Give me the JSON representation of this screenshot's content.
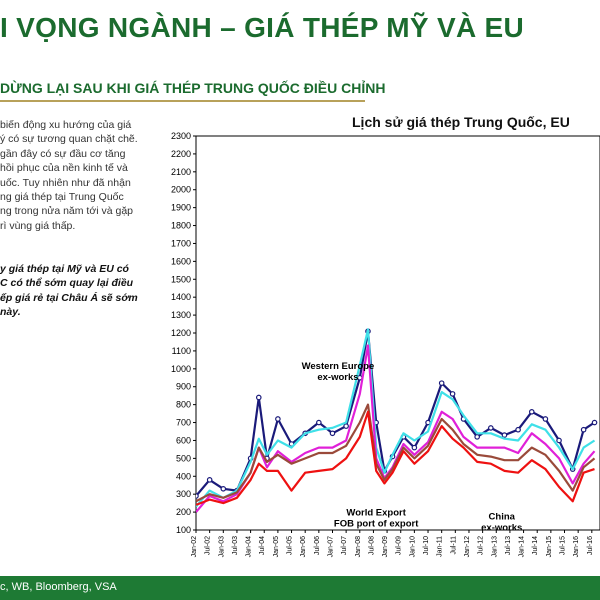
{
  "header": {
    "title": "I VỌNG NGÀNH – GIÁ THÉP MỸ VÀ EU",
    "subtitle": "DỪNG LẠI SAU KHI GIÁ THÉP TRUNG QUỐC ĐIỀU CHỈNH"
  },
  "body": {
    "lines": [
      "biến động xu hướng của giá",
      "ý có sự tương quan chặt chẽ.",
      "gần đây có sự đầu cơ tăng",
      "hồi phục của nền kinh tế và",
      "uốc. Tuy nhiên như đã nhận",
      "ng giá thép tại Trung Quốc",
      "ng trong nửa năm tới và gặp",
      "rì vùng giá thấp."
    ],
    "bold_lines": [
      "y giá thép tại Mỹ và EU có",
      "C có thể sớm quay lại điều",
      "ếp giá rẻ tại Châu Á sẽ sớm",
      "này."
    ]
  },
  "footer": {
    "source": "c, WB, Bloomberg, VSA"
  },
  "colors": {
    "brand": "#1b6b2e",
    "footer": "#1e7a34",
    "rule": "#b8a15a",
    "navy": "#1a1a7a",
    "cyan": "#3fe0e8",
    "magenta": "#e020d8",
    "brown": "#9a4a3a",
    "red": "#ee1111"
  },
  "chart_data": {
    "type": "line",
    "title": "Lịch sử giá thép Trung Quốc, EU",
    "ylim": [
      100,
      2300
    ],
    "yticks": [
      100,
      200,
      300,
      400,
      500,
      600,
      700,
      800,
      900,
      1000,
      1100,
      1200,
      1300,
      1400,
      1500,
      1600,
      1700,
      1800,
      1900,
      2000,
      2100,
      2200,
      2300
    ],
    "xlabels": [
      "Jan-02",
      "Jul-02",
      "Jan-03",
      "Jul-03",
      "Jan-04",
      "Jul-04",
      "Jan-05",
      "Jul-05",
      "Jan-06",
      "Jul-06",
      "Jan-07",
      "Jul-07",
      "Jan-08",
      "Jul-08",
      "Jan-09",
      "Jul-09",
      "Jan-10",
      "Jul-10",
      "Jan-11",
      "Jul-11",
      "Jan-12",
      "Jul-12",
      "Jan-13",
      "Jul-13",
      "Jan-14",
      "Jul-14",
      "Jan-15",
      "Jul-15",
      "Jan-16",
      "Jul-16"
    ],
    "x": [
      2002,
      2002.5,
      2003,
      2003.5,
      2004,
      2004.3,
      2004.6,
      2005,
      2005.5,
      2006,
      2006.5,
      2007,
      2007.5,
      2008,
      2008.3,
      2008.6,
      2008.9,
      2009.2,
      2009.6,
      2010,
      2010.5,
      2011,
      2011.4,
      2011.8,
      2012.3,
      2012.8,
      2013.3,
      2013.8,
      2014.3,
      2014.8,
      2015.3,
      2015.8,
      2016.2,
      2016.6
    ],
    "series": [
      {
        "name": "Western Europe ex-works",
        "color": "#1a1a7a",
        "values": [
          290,
          380,
          330,
          320,
          500,
          840,
          500,
          720,
          580,
          640,
          700,
          640,
          680,
          950,
          1210,
          700,
          430,
          510,
          620,
          560,
          700,
          920,
          860,
          720,
          620,
          670,
          630,
          660,
          760,
          720,
          600,
          440,
          660,
          700
        ]
      },
      {
        "name": "",
        "color": "#3fe0e8",
        "values": [
          230,
          320,
          280,
          320,
          480,
          610,
          520,
          600,
          560,
          640,
          660,
          670,
          700,
          1020,
          1220,
          560,
          420,
          520,
          640,
          600,
          650,
          870,
          830,
          740,
          640,
          640,
          610,
          600,
          690,
          660,
          560,
          440,
          560,
          600
        ]
      },
      {
        "name": "",
        "color": "#e020d8",
        "values": [
          200,
          290,
          260,
          300,
          420,
          560,
          450,
          540,
          480,
          530,
          560,
          560,
          600,
          860,
          1130,
          500,
          390,
          450,
          580,
          520,
          590,
          760,
          720,
          620,
          560,
          560,
          560,
          530,
          640,
          580,
          500,
          360,
          470,
          540
        ]
      },
      {
        "name": "",
        "color": "#9a4a3a",
        "values": [
          260,
          300,
          280,
          310,
          420,
          560,
          480,
          520,
          470,
          500,
          530,
          530,
          570,
          700,
          800,
          470,
          380,
          440,
          560,
          500,
          570,
          720,
          660,
          580,
          520,
          510,
          490,
          490,
          560,
          520,
          430,
          320,
          450,
          500
        ]
      },
      {
        "name": "China ex-works",
        "color": "#ee1111",
        "values": [
          240,
          270,
          250,
          280,
          380,
          470,
          430,
          430,
          320,
          420,
          430,
          440,
          500,
          620,
          760,
          430,
          360,
          420,
          540,
          470,
          540,
          680,
          610,
          560,
          480,
          470,
          430,
          420,
          490,
          440,
          340,
          260,
          420,
          440
        ]
      }
    ],
    "annotations": [
      {
        "label": "Western Europe",
        "sub": "ex-works",
        "data": [
          2007.2,
          1000
        ]
      },
      {
        "label": "World Export",
        "sub": "FOB port of export",
        "data": [
          2008.6,
          180
        ]
      },
      {
        "label": "China",
        "sub": "ex-works",
        "data": [
          2013.2,
          160
        ]
      }
    ]
  }
}
